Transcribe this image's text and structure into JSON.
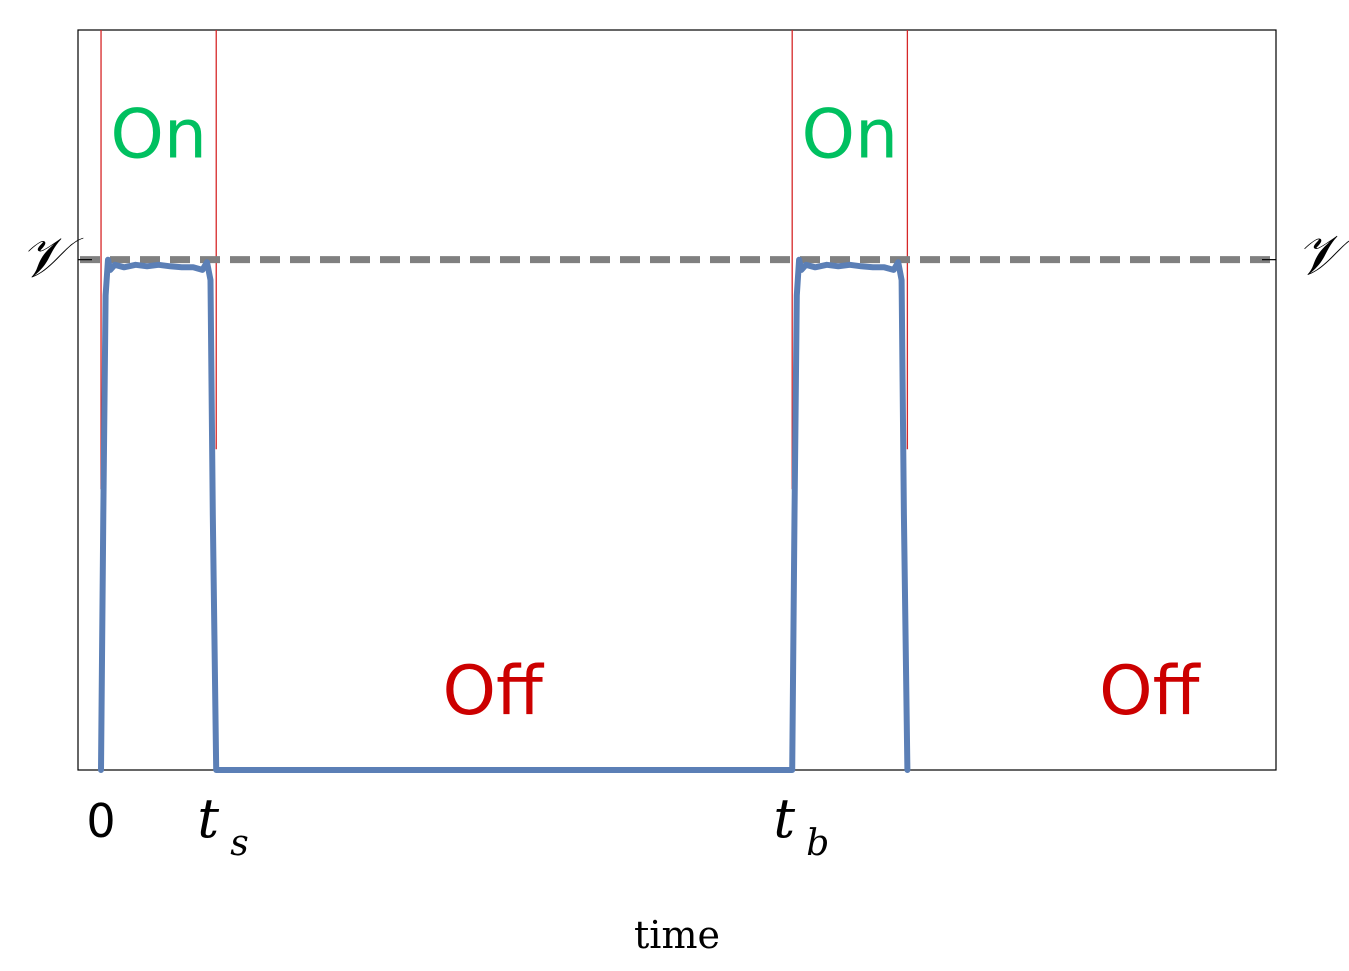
{
  "chart_data": {
    "type": "line",
    "xlabel": "time",
    "ylabel": "",
    "x_ticks": [
      {
        "value": 0,
        "label": "0"
      },
      {
        "value": 1,
        "label": "t",
        "sub": "s"
      },
      {
        "value": 6,
        "label": "t",
        "sub": "b"
      }
    ],
    "y_ticks": [
      {
        "value": 1,
        "label": "𝒱"
      }
    ],
    "xlim": [
      -0.2,
      10.2
    ],
    "ylim": [
      0,
      1.45
    ],
    "reference_line": {
      "y": 1,
      "style": "dashed",
      "color": "#808080"
    },
    "switch_lines": {
      "x": [
        0,
        1,
        6,
        7
      ],
      "color": "#d62728"
    },
    "series": [
      {
        "color": "#5b7fb6",
        "x": [
          0.0,
          0.02,
          0.04,
          0.06,
          0.08,
          0.12,
          0.2,
          0.3,
          0.4,
          0.5,
          0.6,
          0.7,
          0.8,
          0.88,
          0.92,
          0.95,
          0.97,
          1.0,
          6.0,
          6.02,
          6.04,
          6.06,
          6.08,
          6.12,
          6.2,
          6.3,
          6.4,
          6.5,
          6.6,
          6.7,
          6.8,
          6.88,
          6.92,
          6.95,
          6.97,
          7.0
        ],
        "y": [
          0.0,
          0.5,
          0.93,
          1.0,
          0.98,
          0.99,
          0.985,
          0.99,
          0.987,
          0.99,
          0.987,
          0.985,
          0.985,
          0.98,
          0.995,
          0.96,
          0.5,
          0.0,
          0.0,
          0.5,
          0.93,
          1.0,
          0.98,
          0.99,
          0.985,
          0.99,
          0.987,
          0.99,
          0.987,
          0.985,
          0.985,
          0.98,
          0.995,
          0.96,
          0.5,
          0.0
        ]
      }
    ],
    "annotations": [
      {
        "text": "On",
        "x": 0.5,
        "y": 1.2,
        "color": "#00c060"
      },
      {
        "text": "On",
        "x": 6.5,
        "y": 1.2,
        "color": "#00c060"
      },
      {
        "text": "Off",
        "x": 3.4,
        "y": 0.11,
        "color": "#cc0000"
      },
      {
        "text": "Off",
        "x": 9.1,
        "y": 0.11,
        "color": "#cc0000"
      }
    ],
    "right_label": "𝒱"
  }
}
